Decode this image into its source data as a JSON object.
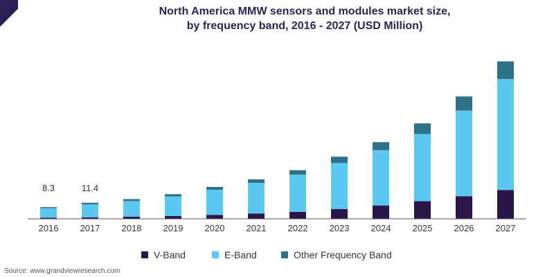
{
  "title_line1": "North America MMW sensors and modules market size,",
  "title_line2": "by frequency band, 2016 - 2027 (USD Million)",
  "source": "Source: www.grandviewresearch.com",
  "colors": {
    "v_band": "#2a1747",
    "e_band": "#5bc8f2",
    "other": "#2f7187",
    "accent": "#2b1f55"
  },
  "chart_data": {
    "type": "bar",
    "stacked": true,
    "categories": [
      "2016",
      "2017",
      "2018",
      "2019",
      "2020",
      "2021",
      "2022",
      "2023",
      "2024",
      "2025",
      "2026",
      "2027"
    ],
    "series": [
      {
        "name": "V-Band",
        "values": [
          0.8,
          1.1,
          1.5,
          2.0,
          2.8,
          3.7,
          5.0,
          7.0,
          9.5,
          12.5,
          16.0,
          20.5
        ]
      },
      {
        "name": "E-Band",
        "values": [
          6.7,
          9.1,
          11.1,
          13.9,
          17.8,
          21.8,
          26.4,
          32.6,
          39.2,
          47.7,
          60.8,
          78.7
        ]
      },
      {
        "name": "Other Frequency Band",
        "values": [
          0.8,
          1.2,
          1.4,
          1.6,
          2.0,
          2.5,
          3.1,
          4.5,
          5.7,
          7.5,
          10.0,
          12.5
        ]
      }
    ],
    "data_labels": [
      {
        "category": "2016",
        "text": "8.3"
      },
      {
        "category": "2017",
        "text": "11.4"
      }
    ],
    "ylim": [
      0,
      112
    ],
    "grid": false,
    "legend_position": "bottom"
  }
}
